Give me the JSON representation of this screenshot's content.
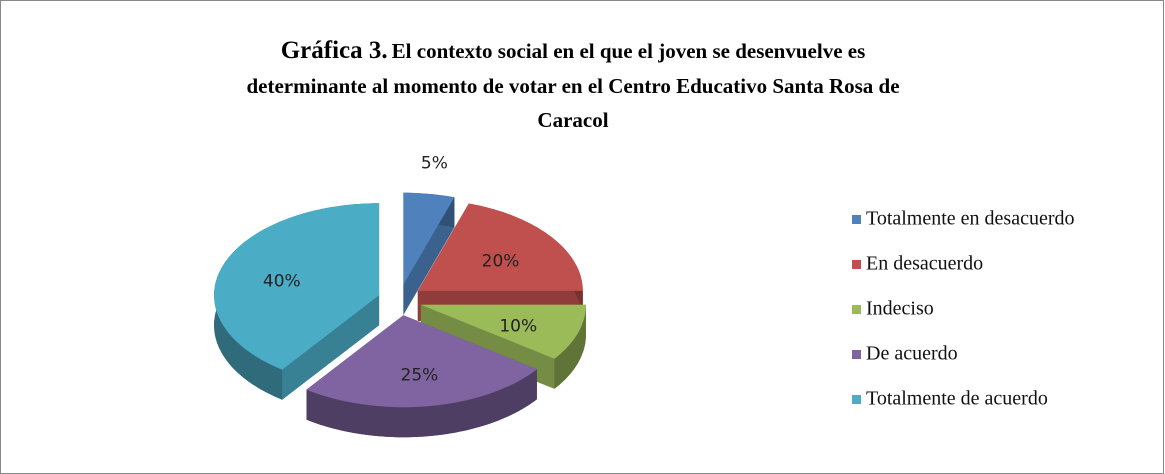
{
  "chart_data": {
    "type": "pie",
    "title_prefix": "Gráfica 3.",
    "title_lines": [
      "El contexto social en el que el joven se desenvuelve es",
      "determinante al momento de votar en el Centro Educativo Santa Rosa de",
      "Caracol"
    ],
    "categories": [
      "Totalmente en  desacuerdo",
      "En desacuerdo",
      "Indeciso",
      "De acuerdo",
      "Totalmente de acuerdo"
    ],
    "values": [
      5,
      20,
      10,
      25,
      40
    ],
    "value_labels": [
      "5%",
      "20%",
      "10%",
      "25%",
      "40%"
    ],
    "colors": [
      "#4f81bd",
      "#c0504d",
      "#9bbb59",
      "#8064a2",
      "#4bacc6"
    ],
    "legend": "right"
  }
}
